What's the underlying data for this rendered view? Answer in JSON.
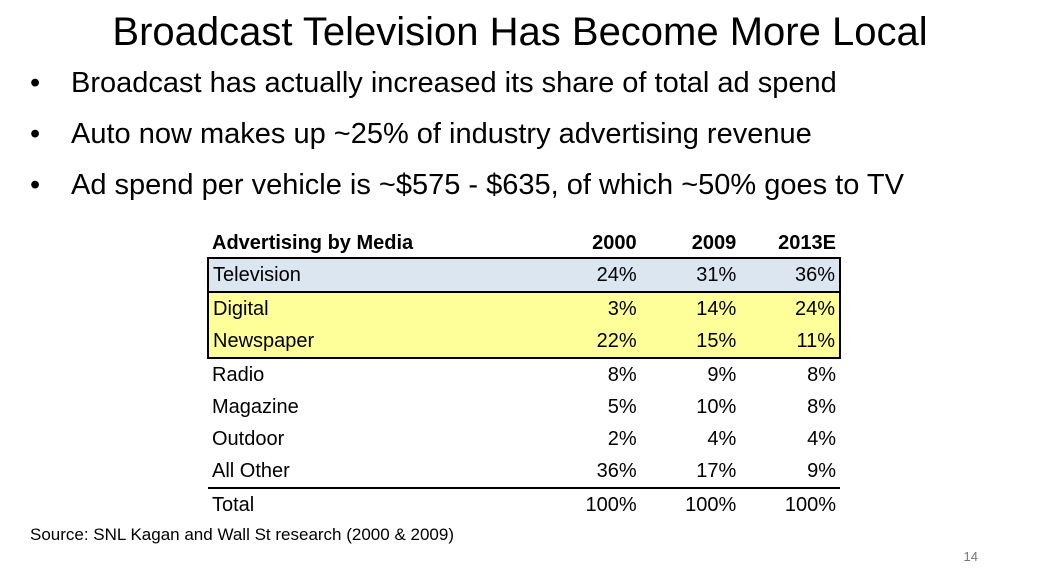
{
  "slide": {
    "title": "Broadcast Television Has Become More Local",
    "bullets": [
      "Broadcast has actually increased its share of total ad spend",
      "Auto now makes up ~25% of industry advertising revenue",
      "Ad spend per vehicle is ~$575 - $635, of which ~50% goes to TV"
    ],
    "bullet_glyph": "•",
    "source": "Source: SNL Kagan and Wall St research (2000 & 2009)",
    "page_number": "14"
  },
  "table": {
    "headers": [
      "Advertising by Media",
      "2000",
      "2009",
      "2013E"
    ],
    "rows": [
      {
        "label": "Television",
        "v2000": "24%",
        "v2009": "31%",
        "v2013": "36%"
      },
      {
        "label": "Digital",
        "v2000": "3%",
        "v2009": "14%",
        "v2013": "24%"
      },
      {
        "label": "Newspaper",
        "v2000": "22%",
        "v2009": "15%",
        "v2013": "11%"
      },
      {
        "label": "Radio",
        "v2000": "8%",
        "v2009": "9%",
        "v2013": "8%"
      },
      {
        "label": "Magazine",
        "v2000": "5%",
        "v2009": "10%",
        "v2013": "8%"
      },
      {
        "label": "Outdoor",
        "v2000": "2%",
        "v2009": "4%",
        "v2013": "4%"
      },
      {
        "label": "All Other",
        "v2000": "36%",
        "v2009": "17%",
        "v2013": "9%"
      }
    ],
    "total": {
      "label": "Total",
      "v2000": "100%",
      "v2009": "100%",
      "v2013": "100%"
    },
    "highlight_colors": {
      "television": "#dce6f1",
      "digital_newspaper": "#ffff99"
    }
  }
}
